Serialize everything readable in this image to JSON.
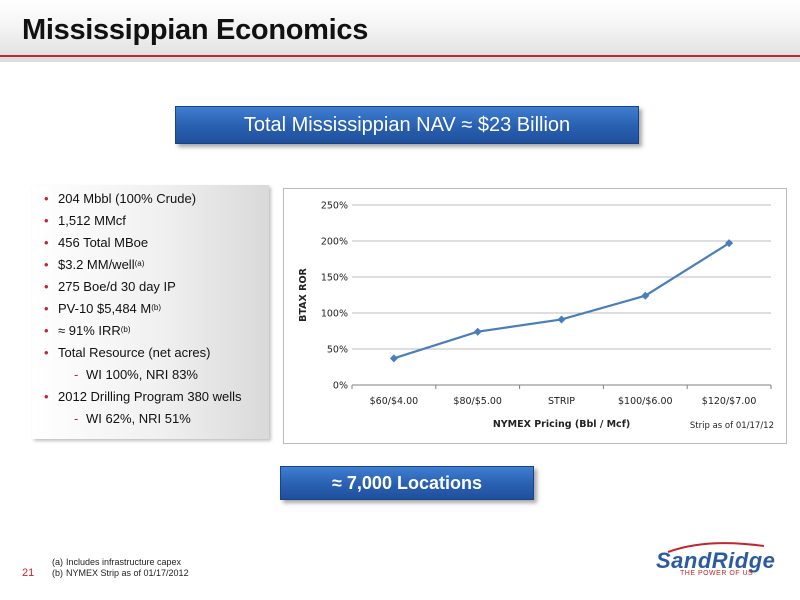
{
  "slide": {
    "title": "Mississippian Economics",
    "page_number": "21"
  },
  "banners": {
    "top": "Total Mississippian NAV ≈ $23 Billion",
    "bottom": "≈ 7,000  Locations"
  },
  "bullets": [
    {
      "text": "204 Mbbl  (100% Crude)"
    },
    {
      "text": "1,512 MMcf"
    },
    {
      "text": "456 Total MBoe"
    },
    {
      "text": "$3.2 MM/well",
      "sup": "(a)"
    },
    {
      "text": "275 Boe/d 30 day IP"
    },
    {
      "text": "PV-10 $5,484 M",
      "sup": "(b)"
    },
    {
      "text": "≈ 91% IRR",
      "sup": "(b)"
    },
    {
      "text": "Total Resource  (net acres)"
    },
    {
      "text": "WI 100%, NRI 83%",
      "sub": true
    },
    {
      "text": "2012 Drilling Program 380 wells"
    },
    {
      "text": "WI 62%, NRI 51%",
      "sub": true
    }
  ],
  "chart_data": {
    "type": "line",
    "categories": [
      "$60/$4.00",
      "$80/$5.00",
      "STRIP",
      "$100/$6.00",
      "$120/$7.00"
    ],
    "series": [
      {
        "values": [
          37,
          74,
          91,
          124,
          197
        ]
      }
    ],
    "xlabel": "NYMEX Pricing (Bbl / Mcf)",
    "ylabel": "BTAX ROR",
    "ylim": [
      0,
      250
    ],
    "yticks": [
      "0%",
      "50%",
      "100%",
      "150%",
      "200%",
      "250%"
    ],
    "note": "Strip as of  01/17/12",
    "grid": true,
    "line_color": "#4a7ebb"
  },
  "footnotes": [
    {
      "tag": "(a)",
      "text": "Includes infrastructure capex"
    },
    {
      "tag": "(b)",
      "text": "NYMEX Strip as of 01/17/2012"
    }
  ],
  "logo": {
    "name": "SandRidge",
    "tagline": "THE POWER OF US"
  }
}
